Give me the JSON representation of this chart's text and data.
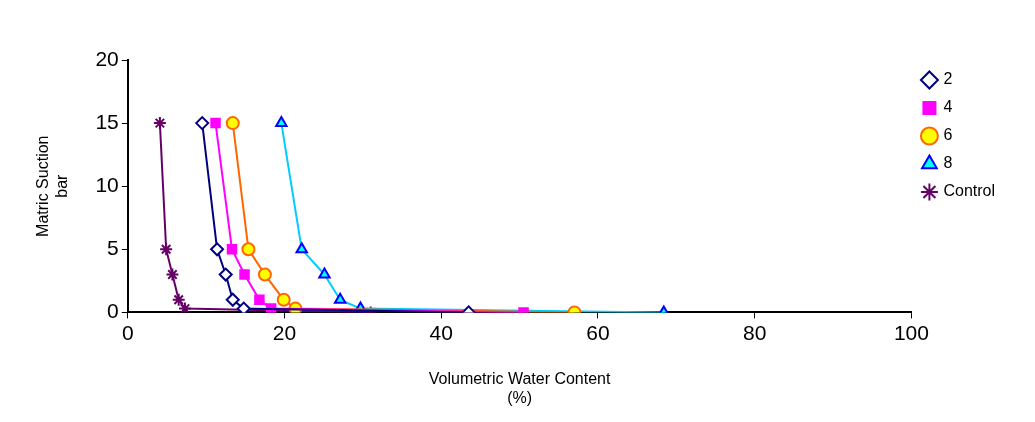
{
  "chart_data": {
    "type": "line",
    "xlabel": "Volumetric Water Content\n(%)",
    "ylabel": "Matric Suction\nbar",
    "xlim": [
      0,
      100
    ],
    "xticks": [
      0,
      20,
      40,
      60,
      80,
      100
    ],
    "ylim": [
      0,
      20
    ],
    "yticks": [
      0,
      5,
      10,
      15,
      20
    ],
    "grid": false,
    "legend": "top right",
    "line_style": "solid",
    "series": [
      {
        "name": "2",
        "color": "#000080",
        "marker": "diamond",
        "x": [
          9.5,
          11.4,
          12.5,
          13.4,
          14.8,
          43.5
        ],
        "values": [
          15,
          5,
          3,
          1,
          0.3,
          0
        ]
      },
      {
        "name": "4",
        "color": "#ff00ff",
        "marker": "square",
        "x": [
          11.2,
          13.3,
          14.9,
          16.8,
          18.3,
          50.5
        ],
        "values": [
          15,
          5,
          3,
          1,
          0.3,
          0
        ]
      },
      {
        "name": "6",
        "color": "#ff6600",
        "marker": "circle",
        "x": [
          13.4,
          15.4,
          17.5,
          19.9,
          21.4,
          57.0
        ],
        "values": [
          15,
          5,
          3,
          1,
          0.3,
          0
        ]
      },
      {
        "name": "8",
        "color": "#00ccff",
        "marker": "triangle",
        "x": [
          19.6,
          22.2,
          25.1,
          27.1,
          29.7,
          68.4
        ],
        "values": [
          15,
          5,
          3,
          1,
          0.3,
          0
        ]
      },
      {
        "name": "Control",
        "color": "#660066",
        "marker": "cross",
        "x": [
          4.1,
          4.9,
          5.7,
          6.5,
          7.3,
          31.0
        ],
        "values": [
          15,
          5,
          3,
          1,
          0.3,
          0
        ]
      }
    ]
  }
}
